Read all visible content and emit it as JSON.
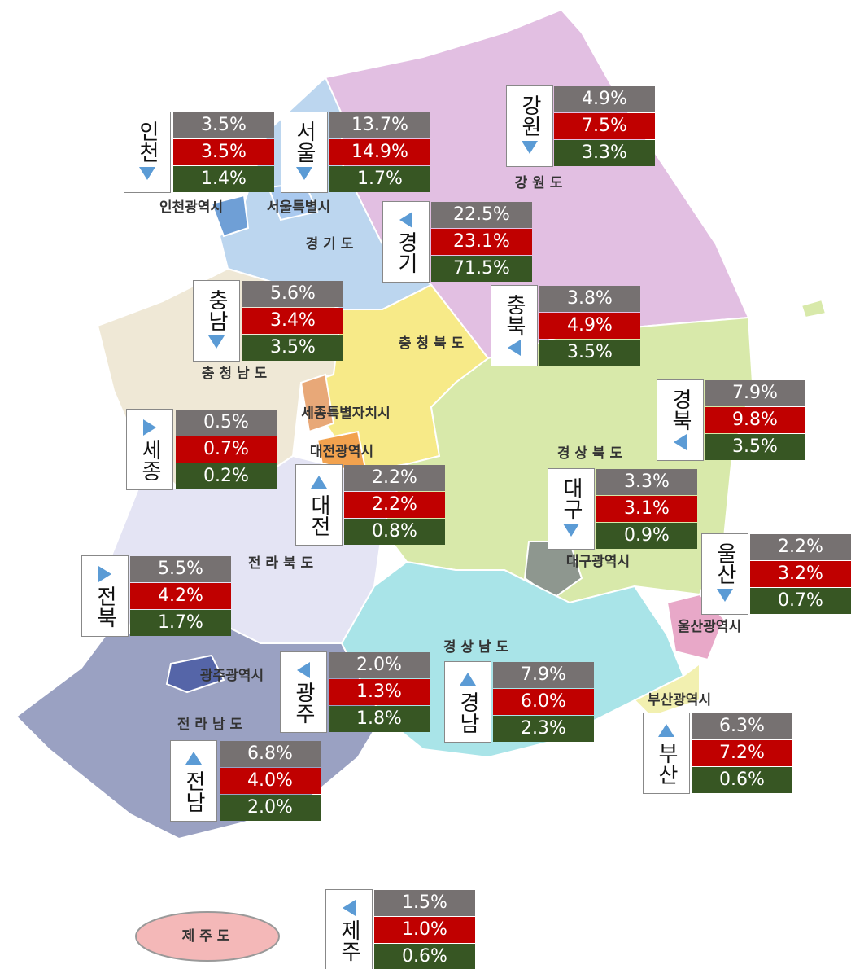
{
  "map_labels": [
    "인천광역시",
    "서울특별시",
    "강 원 도",
    "경 기 도",
    "충 청 북 도",
    "충 청 남 도",
    "세종특별자치시",
    "대전광역시",
    "경 상 북 도",
    "대구광역시",
    "전 라 북 도",
    "울산광역시",
    "광주광역시",
    "경 상 남 도",
    "부산광역시",
    "전 라 남 도",
    "제 주 도"
  ],
  "callouts": [
    {
      "name": "인천",
      "arrow": "down",
      "values": [
        "3.5%",
        "3.5%",
        "1.4%"
      ]
    },
    {
      "name": "서울",
      "arrow": "down",
      "values": [
        "13.7%",
        "14.9%",
        "1.7%"
      ]
    },
    {
      "name": "강원",
      "arrow": "down",
      "values": [
        "4.9%",
        "7.5%",
        "3.3%"
      ]
    },
    {
      "name": "경기",
      "arrow": "left",
      "values": [
        "22.5%",
        "23.1%",
        "71.5%"
      ]
    },
    {
      "name": "충남",
      "arrow": "down",
      "values": [
        "5.6%",
        "3.4%",
        "3.5%"
      ]
    },
    {
      "name": "충북",
      "arrow": "left",
      "values": [
        "3.8%",
        "4.9%",
        "3.5%"
      ]
    },
    {
      "name": "경북",
      "arrow": "left",
      "values": [
        "7.9%",
        "9.8%",
        "3.5%"
      ]
    },
    {
      "name": "세종",
      "arrow": "right",
      "values": [
        "0.5%",
        "0.7%",
        "0.2%"
      ]
    },
    {
      "name": "대전",
      "arrow": "up",
      "values": [
        "2.2%",
        "2.2%",
        "0.8%"
      ]
    },
    {
      "name": "대구",
      "arrow": "down",
      "values": [
        "3.3%",
        "3.1%",
        "0.9%"
      ]
    },
    {
      "name": "울산",
      "arrow": "down",
      "values": [
        "2.2%",
        "3.2%",
        "0.7%"
      ]
    },
    {
      "name": "전북",
      "arrow": "right",
      "values": [
        "5.5%",
        "4.2%",
        "1.7%"
      ]
    },
    {
      "name": "광주",
      "arrow": "left",
      "values": [
        "2.0%",
        "1.3%",
        "1.8%"
      ]
    },
    {
      "name": "경남",
      "arrow": "up",
      "values": [
        "7.9%",
        "6.0%",
        "2.3%"
      ]
    },
    {
      "name": "부산",
      "arrow": "up",
      "values": [
        "6.3%",
        "7.2%",
        "0.6%"
      ]
    },
    {
      "name": "전남",
      "arrow": "up",
      "values": [
        "6.8%",
        "4.0%",
        "2.0%"
      ]
    },
    {
      "name": "제주",
      "arrow": "left",
      "values": [
        "1.5%",
        "1.0%",
        "0.6%"
      ]
    }
  ]
}
